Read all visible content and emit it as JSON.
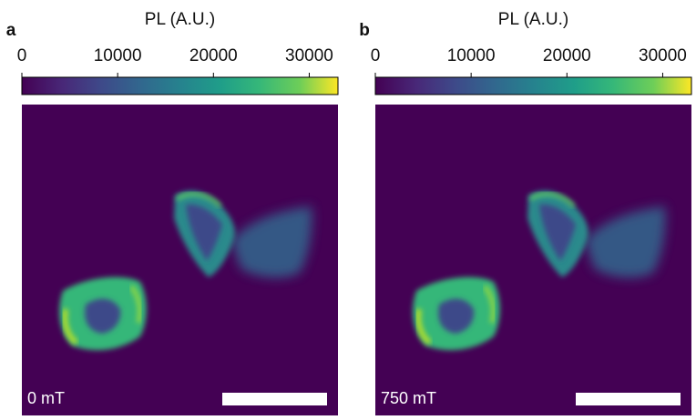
{
  "chart_data": [
    {
      "type": "image",
      "panel": "a",
      "colorbar_label": "PL (A.U.)",
      "clim": [
        0,
        33000
      ],
      "cticks": [
        0,
        10000,
        20000,
        30000
      ],
      "colormap": "viridis",
      "annotation": "0 mT"
    },
    {
      "type": "image",
      "panel": "b",
      "colorbar_label": "PL (A.U.)",
      "clim": [
        0,
        33000
      ],
      "cticks": [
        0,
        10000,
        20000,
        30000
      ],
      "colormap": "viridis",
      "annotation": "750 mT"
    }
  ]
}
